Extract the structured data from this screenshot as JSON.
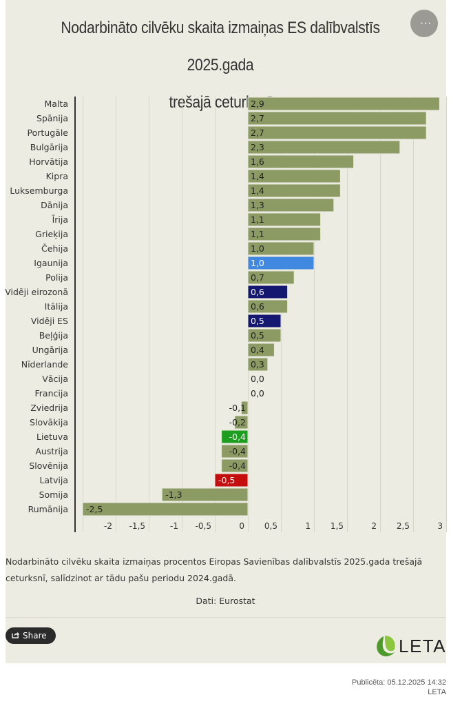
{
  "header": {
    "title_line1": "Nodarbināto cilvēku skaita izmaiņas ES dalībvalstīs 2025.gada",
    "title_line2": "trešajā ceturksnī",
    "menu_icon": "more-dots-icon"
  },
  "chart_data": {
    "type": "bar",
    "orientation": "horizontal",
    "title": "Nodarbināto cilvēku skaita izmaiņas ES dalībvalstīs 2025.gada trešajā ceturksnī",
    "xlabel": "",
    "ylabel": "",
    "xlim": [
      -2.5,
      3
    ],
    "xticks": [
      -2,
      -1.5,
      -1,
      -0.5,
      0,
      0.5,
      1,
      1.5,
      2,
      2.5,
      3
    ],
    "xtick_labels": [
      "-2",
      "-1,5",
      "-1",
      "-0,5",
      "0",
      "0,5",
      "1",
      "1,5",
      "2",
      "2,5",
      "3"
    ],
    "grid": true,
    "default_color": "#8c9a64",
    "categories": [
      "Malta",
      "Spānija",
      "Portugāle",
      "Bulgārija",
      "Horvātija",
      "Kipra",
      "Luksemburga",
      "Dānija",
      "Īrija",
      "Grieķija",
      "Čehija",
      "Igaunija",
      "Polija",
      "Vidēji eirozonā",
      "Itālija",
      "Vidēji ES",
      "Beļģija",
      "Ungārija",
      "Nīderlande",
      "Vācija",
      "Francija",
      "Zviedrija",
      "Slovākija",
      "Lietuva",
      "Austrija",
      "Slovēnija",
      "Latvija",
      "Somija",
      "Rumānija"
    ],
    "values": [
      2.9,
      2.7,
      2.7,
      2.3,
      1.6,
      1.4,
      1.4,
      1.3,
      1.1,
      1.1,
      1.0,
      1.0,
      0.7,
      0.6,
      0.6,
      0.5,
      0.5,
      0.4,
      0.3,
      0.0,
      0.0,
      -0.1,
      -0.2,
      -0.4,
      -0.4,
      -0.4,
      -0.5,
      -1.3,
      -2.5
    ],
    "value_labels": [
      "2,9",
      "2,7",
      "2,7",
      "2,3",
      "1,6",
      "1,4",
      "1,4",
      "1,3",
      "1,1",
      "1,1",
      "1,0",
      "1,0",
      "0,7",
      "0,6",
      "0,6",
      "0,5",
      "0,5",
      "0,4",
      "0,3",
      "0,0",
      "0,0",
      "-0,1",
      "-0,2",
      "-0,4",
      "-0,4",
      "-0,4",
      "-0,5",
      "-1,3",
      "-2,5"
    ],
    "highlights": {
      "Igaunija": "#4189e0",
      "Vidēji eirozonā": "#151870",
      "Vidēji ES": "#151870",
      "Lietuva": "#1e9e1e",
      "Latvija": "#c40e0e"
    },
    "highlight_label_color": "#ffffff"
  },
  "footer": {
    "caption": "Nodarbināto cilvēku skaita izmaiņas procentos Eiropas Savienības dalībvalstīs 2025.gada trešajā ceturksnī, salīdzinot ar tādu pašu periodu 2024.gadā.",
    "source": "Dati: Eurostat",
    "share_label": "Share",
    "logo_text": "LETA",
    "published": "Publicēta: 05.12.2025 14:32",
    "publisher": "LETA"
  }
}
